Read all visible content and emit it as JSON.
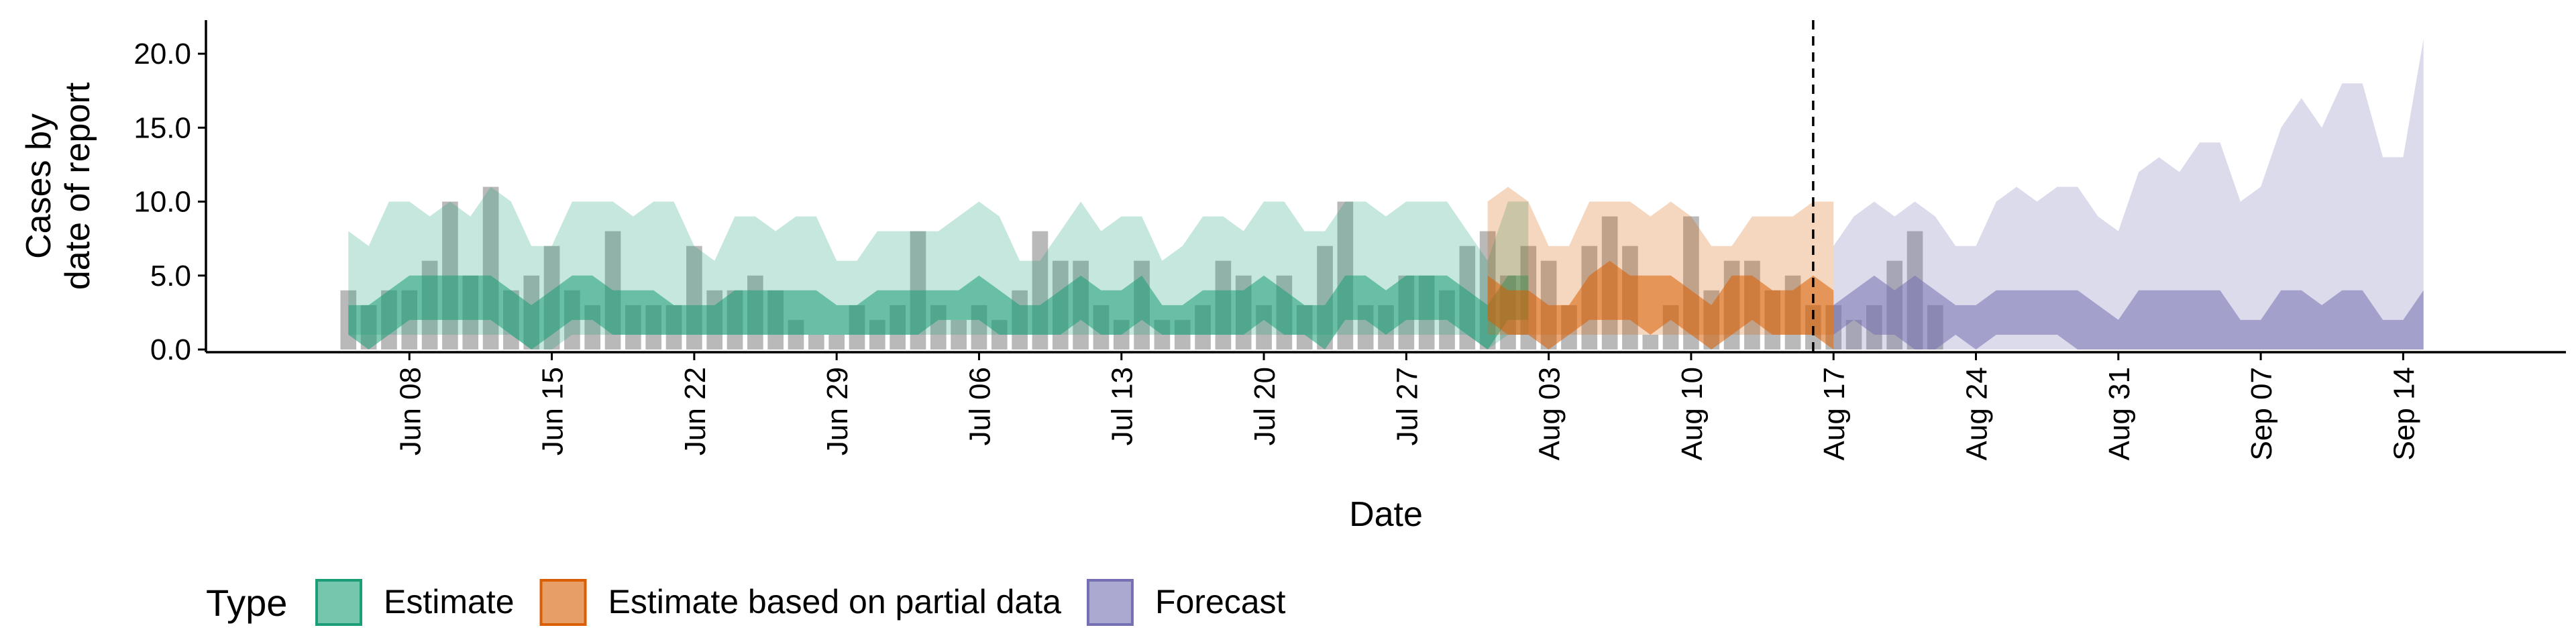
{
  "chart_data": {
    "type": "area",
    "ylabel_lines": [
      "Cases by",
      "date of report"
    ],
    "xlabel": "Date",
    "ylim": [
      0,
      22
    ],
    "xlim": [
      "2020-05-29",
      "2020-09-22"
    ],
    "y_ticks": [
      "0.0",
      "5.0",
      "10.0",
      "15.0",
      "20.0"
    ],
    "x_ticks": [
      {
        "date": "2020-06-08",
        "label": "Jun 08"
      },
      {
        "date": "2020-06-15",
        "label": "Jun 15"
      },
      {
        "date": "2020-06-22",
        "label": "Jun 22"
      },
      {
        "date": "2020-06-29",
        "label": "Jun 29"
      },
      {
        "date": "2020-07-06",
        "label": "Jul 06"
      },
      {
        "date": "2020-07-13",
        "label": "Jul 13"
      },
      {
        "date": "2020-07-20",
        "label": "Jul 20"
      },
      {
        "date": "2020-07-27",
        "label": "Jul 27"
      },
      {
        "date": "2020-08-03",
        "label": "Aug 03"
      },
      {
        "date": "2020-08-10",
        "label": "Aug 10"
      },
      {
        "date": "2020-08-17",
        "label": "Aug 17"
      },
      {
        "date": "2020-08-24",
        "label": "Aug 24"
      },
      {
        "date": "2020-08-31",
        "label": "Aug 31"
      },
      {
        "date": "2020-09-07",
        "label": "Sep 07"
      },
      {
        "date": "2020-09-14",
        "label": "Sep 14"
      }
    ],
    "vline_date": "2020-08-16",
    "grid": false,
    "legend": {
      "title": "Type",
      "position": "bottom",
      "items": [
        {
          "label": "Estimate",
          "color": "#1b9e77"
        },
        {
          "label": "Estimate based on partial data",
          "color": "#d95f02"
        },
        {
          "label": "Forecast",
          "color": "#7570b3"
        }
      ]
    },
    "bars": {
      "start_date": "2020-06-05",
      "color": "#7f7f7f",
      "values": [
        4,
        3,
        4,
        4,
        6,
        10,
        5,
        11,
        4,
        5,
        7,
        4,
        3,
        8,
        3,
        3,
        3,
        7,
        4,
        4,
        5,
        4,
        2,
        1,
        1,
        3,
        2,
        3,
        8,
        3,
        2,
        3,
        2,
        4,
        8,
        6,
        6,
        3,
        2,
        6,
        2,
        2,
        3,
        6,
        5,
        3,
        5,
        3,
        7,
        10,
        3,
        3,
        5,
        5,
        4,
        7,
        8,
        5,
        7,
        6,
        3,
        7,
        9,
        7,
        1,
        3,
        9,
        4,
        6,
        6,
        4,
        5,
        3,
        3,
        2,
        3,
        6,
        8,
        3
      ]
    },
    "series": [
      {
        "name": "Estimate",
        "start_date": "2020-06-05",
        "color": "#1b9e77",
        "outer_upper": [
          8,
          7,
          10,
          10,
          9,
          10,
          9,
          11,
          10,
          7,
          7,
          10,
          10,
          10,
          9,
          10,
          10,
          7,
          6,
          9,
          9,
          8,
          9,
          9,
          6,
          6,
          8,
          8,
          8,
          8,
          9,
          10,
          9,
          6,
          6,
          8,
          10,
          8,
          9,
          9,
          6,
          7,
          9,
          9,
          8,
          10,
          10,
          8,
          8,
          10,
          10,
          9,
          10,
          10,
          10,
          8,
          6,
          10,
          10
        ],
        "outer_lower": [
          1,
          1,
          1,
          1,
          1,
          1,
          1,
          1,
          1,
          0,
          0,
          1,
          1,
          1,
          1,
          1,
          1,
          1,
          1,
          1,
          1,
          1,
          1,
          1,
          1,
          1,
          1,
          1,
          1,
          1,
          1,
          1,
          1,
          1,
          1,
          1,
          1,
          1,
          1,
          1,
          1,
          1,
          1,
          1,
          1,
          1,
          1,
          1,
          1,
          1,
          1,
          1,
          1,
          1,
          1,
          1,
          0,
          1,
          1
        ],
        "inner_upper": [
          3,
          3,
          4,
          5,
          5,
          5,
          5,
          5,
          4,
          3,
          4,
          5,
          5,
          4,
          4,
          4,
          3,
          3,
          3,
          4,
          4,
          4,
          4,
          4,
          3,
          3,
          4,
          4,
          4,
          4,
          4,
          5,
          4,
          3,
          3,
          4,
          5,
          4,
          4,
          5,
          3,
          3,
          4,
          4,
          4,
          5,
          4,
          3,
          3,
          5,
          5,
          4,
          5,
          5,
          5,
          4,
          3,
          5,
          5
        ],
        "inner_lower": [
          1,
          0,
          1,
          2,
          2,
          2,
          2,
          2,
          1,
          0,
          1,
          2,
          2,
          1,
          1,
          1,
          1,
          1,
          1,
          1,
          1,
          1,
          1,
          1,
          1,
          1,
          1,
          1,
          1,
          2,
          2,
          2,
          1,
          1,
          1,
          1,
          2,
          1,
          1,
          2,
          1,
          1,
          1,
          1,
          1,
          2,
          1,
          1,
          0,
          2,
          2,
          1,
          2,
          2,
          2,
          1,
          0,
          2,
          2
        ]
      },
      {
        "name": "Estimate based on partial data",
        "start_date": "2020-07-31",
        "color": "#d95f02",
        "outer_upper": [
          10,
          11,
          10,
          7,
          7,
          10,
          10,
          10,
          9,
          10,
          9,
          7,
          7,
          9,
          9,
          9,
          10,
          10
        ],
        "outer_lower": [
          1,
          1,
          1,
          1,
          1,
          1,
          1,
          1,
          1,
          1,
          1,
          1,
          1,
          1,
          1,
          1,
          1,
          1
        ],
        "inner_upper": [
          5,
          4,
          4,
          3,
          3,
          5,
          6,
          5,
          5,
          5,
          4,
          3,
          5,
          5,
          4,
          4,
          5,
          4
        ],
        "inner_lower": [
          2,
          1,
          1,
          0,
          1,
          2,
          2,
          2,
          1,
          2,
          1,
          0,
          1,
          2,
          1,
          1,
          1,
          0
        ]
      },
      {
        "name": "Forecast",
        "start_date": "2020-08-17",
        "color": "#7570b3",
        "outer_upper": [
          7,
          9,
          10,
          9,
          10,
          9,
          7,
          7,
          10,
          11,
          10,
          11,
          11,
          9,
          8,
          12,
          13,
          12,
          14,
          14,
          10,
          11,
          15,
          17,
          15,
          18,
          18,
          13,
          13,
          21
        ],
        "outer_lower": [
          0,
          0,
          0,
          0,
          0,
          0,
          0,
          0,
          0,
          0,
          0,
          0,
          0,
          0,
          0,
          0,
          0,
          0,
          0,
          0,
          0,
          0,
          0,
          0,
          0,
          0,
          0,
          0,
          0,
          0
        ],
        "inner_upper": [
          3,
          4,
          5,
          4,
          5,
          4,
          3,
          3,
          4,
          4,
          4,
          4,
          4,
          3,
          2,
          4,
          4,
          4,
          4,
          4,
          2,
          2,
          4,
          4,
          3,
          4,
          4,
          2,
          2,
          4
        ],
        "inner_lower": [
          1,
          2,
          1,
          1,
          0,
          0,
          1,
          0,
          1,
          1,
          1,
          1,
          0,
          0,
          0,
          0,
          0,
          0,
          0,
          0,
          0,
          0,
          0,
          0,
          0,
          0,
          0,
          0,
          0,
          0
        ]
      }
    ]
  }
}
